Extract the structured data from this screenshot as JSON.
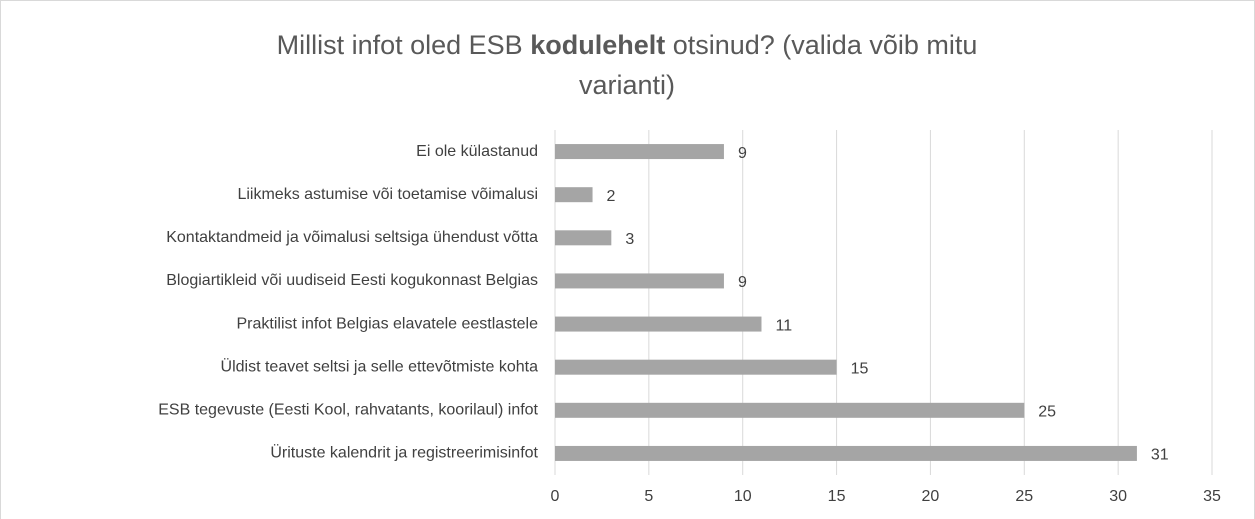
{
  "chart_data": {
    "type": "barh",
    "title_lines": [
      [
        {
          "text": "Millist infot oled ESB "
        },
        {
          "text": "kodulehelt",
          "bold": true
        },
        {
          "text": " otsinud? (valida võib mitu"
        }
      ],
      [
        {
          "text": "varianti)"
        }
      ]
    ],
    "categories": [
      "Ei ole külastanud",
      "Liikmeks astumise või toetamise võimalusi",
      "Kontaktandmeid ja võimalusi seltsiga ühendust võtta",
      "Blogiartikleid või uudiseid Eesti kogukonnast Belgias",
      "Praktilist infot Belgias elavatele eestlastele",
      "Üldist teavet seltsi ja selle ettevõtmiste kohta",
      "ESB tegevuste (Eesti Kool, rahvatants, koorilaul) infot",
      "Ürituste kalendrit ja registreerimisinfot"
    ],
    "values": [
      9,
      2,
      3,
      9,
      11,
      15,
      25,
      31
    ],
    "color": "#a5a5a5",
    "xlim": [
      0,
      35
    ],
    "xticks": [
      0,
      5,
      10,
      15,
      20,
      25,
      30,
      35
    ],
    "grid": true
  }
}
